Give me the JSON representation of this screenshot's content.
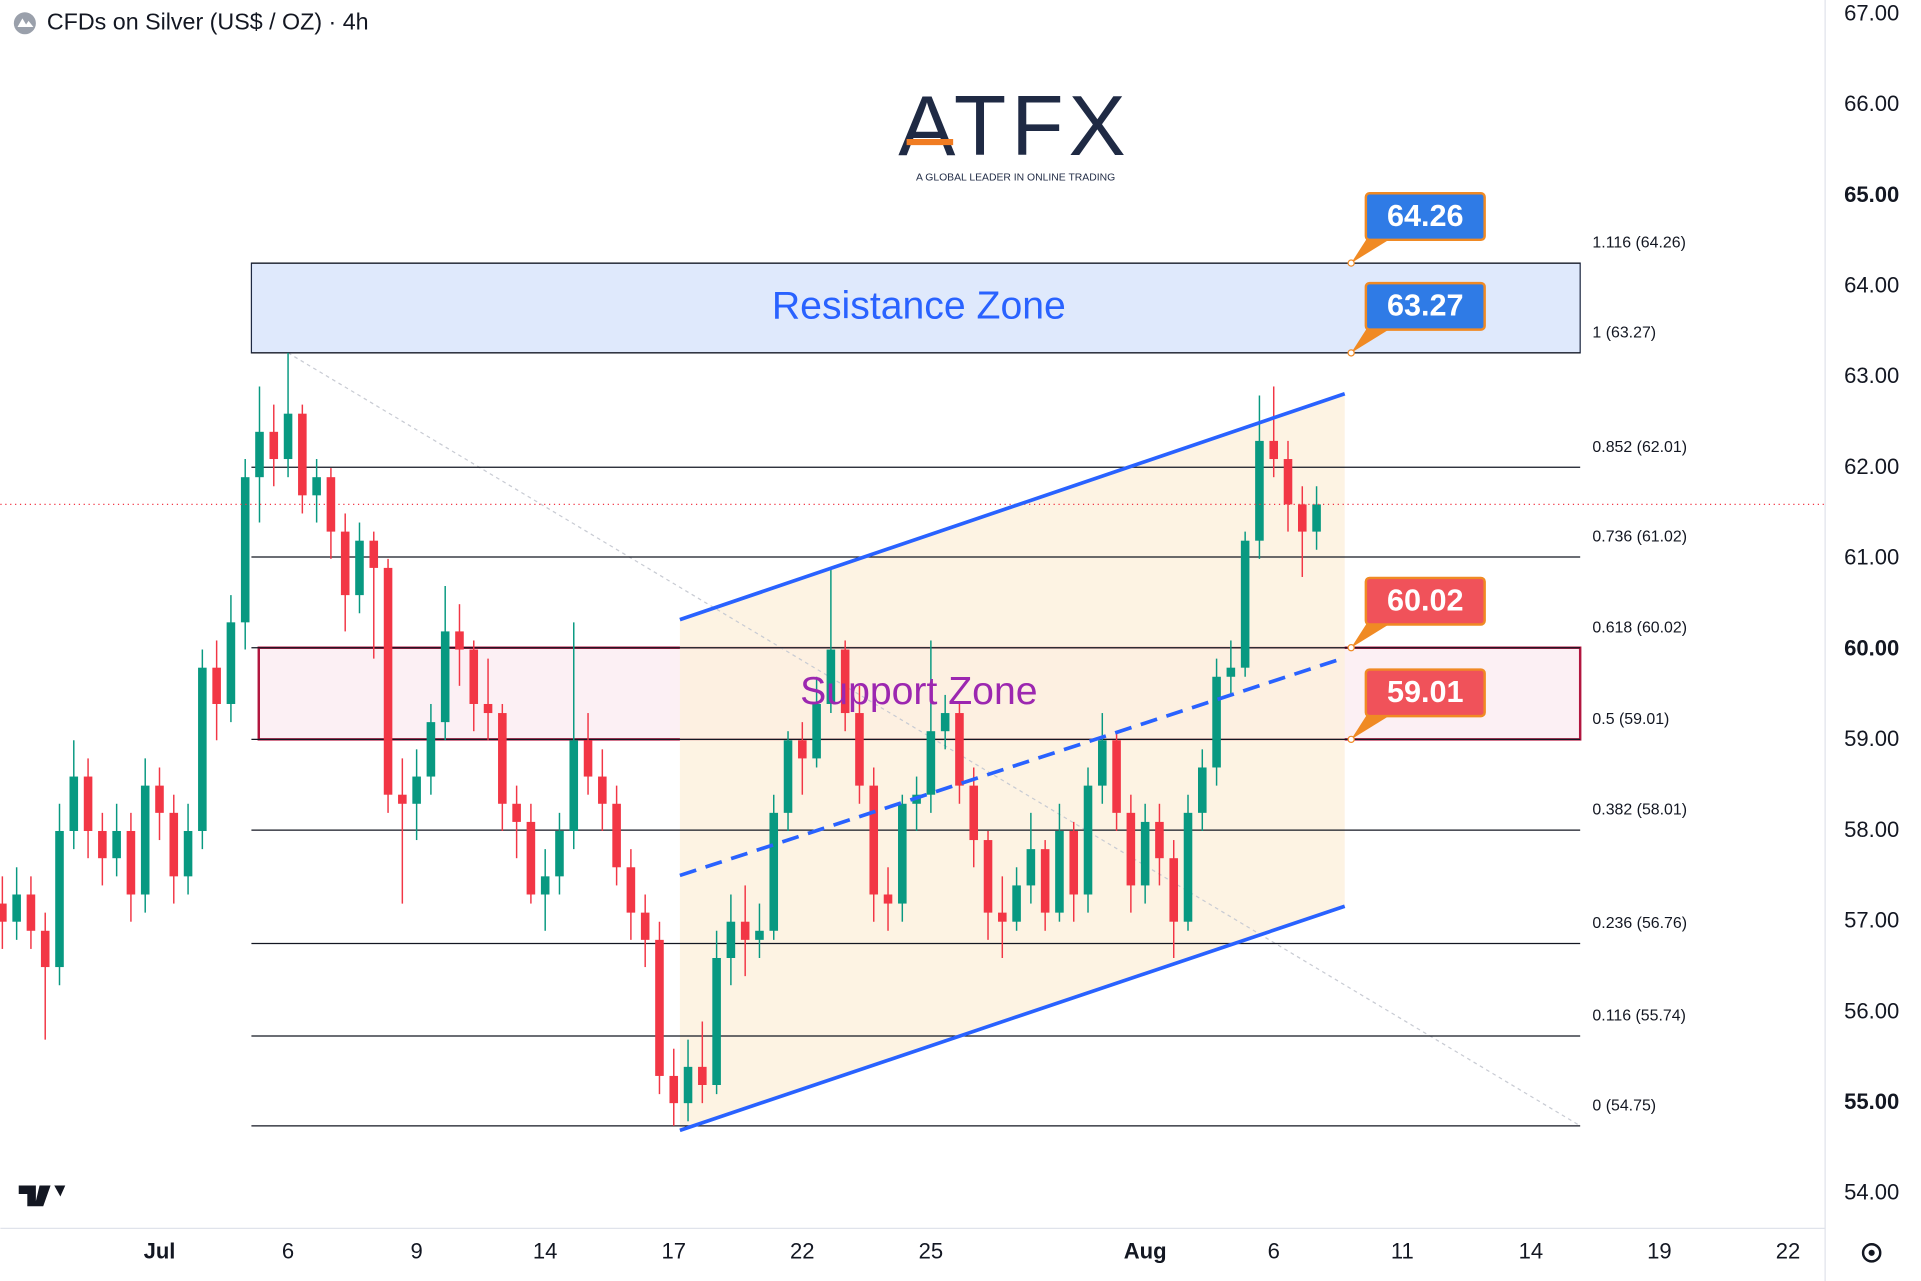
{
  "chart_data": {
    "type": "candlestick",
    "title": "CFDs on Silver (US$ / OZ) · 4h",
    "logo": "ATFX",
    "logo_tagline": "A GLOBAL LEADER IN ONLINE TRADING",
    "up_color": "#089981",
    "down_color": "#f23645",
    "x": [
      -11,
      -10,
      -9,
      -8,
      -7,
      -6,
      -5,
      -4,
      -3,
      -2,
      -1,
      0,
      1,
      2,
      3,
      4,
      5,
      6,
      7,
      8,
      9,
      10,
      11,
      12,
      13,
      14,
      15,
      16,
      17,
      18,
      19,
      20,
      21,
      22,
      23,
      24,
      25,
      26,
      27,
      28,
      29,
      30,
      31,
      32,
      33,
      34,
      35,
      36,
      37,
      38,
      39,
      40,
      41,
      42,
      43,
      44,
      45,
      46,
      47,
      48,
      49,
      50,
      51,
      52,
      53,
      54,
      55,
      56,
      57,
      58,
      59,
      60,
      61,
      62,
      63,
      64,
      65,
      66,
      67,
      68,
      69,
      70,
      71,
      72,
      73,
      74,
      75,
      76,
      77,
      78,
      79,
      80,
      81
    ],
    "open": [
      57.2,
      57.0,
      57.3,
      56.9,
      56.5,
      58.0,
      58.6,
      58.0,
      57.7,
      58.0,
      57.3,
      58.5,
      58.2,
      57.5,
      58.0,
      59.8,
      59.4,
      60.3,
      61.9,
      62.4,
      62.1,
      62.6,
      61.7,
      61.9,
      61.3,
      60.6,
      61.2,
      60.9,
      58.4,
      58.3,
      58.6,
      59.2,
      60.2,
      60.0,
      59.4,
      59.3,
      58.3,
      58.1,
      57.3,
      57.5,
      58.0,
      59.0,
      58.6,
      58.3,
      57.6,
      57.1,
      56.8,
      55.3,
      55.0,
      55.4,
      55.2,
      56.6,
      57.0,
      56.8,
      56.9,
      58.2,
      59.0,
      58.8,
      59.4,
      60.0,
      59.3,
      58.5,
      57.3,
      57.2,
      58.3,
      58.4,
      59.1,
      59.3,
      58.5,
      57.9,
      57.1,
      57.0,
      57.4,
      57.8,
      57.1,
      58.0,
      57.3,
      58.5,
      59.0,
      58.2,
      57.4,
      58.1,
      57.7,
      57.0,
      58.2,
      58.7,
      59.7,
      59.8,
      61.2,
      62.3,
      62.1,
      61.6,
      61.3
    ],
    "high": [
      57.5,
      57.6,
      57.5,
      57.1,
      58.3,
      59.0,
      58.8,
      58.2,
      58.3,
      58.2,
      58.8,
      58.7,
      58.4,
      58.3,
      60.0,
      60.1,
      60.6,
      62.1,
      62.9,
      62.7,
      63.27,
      62.7,
      62.1,
      62.0,
      61.5,
      61.4,
      61.3,
      61.0,
      58.8,
      58.9,
      59.4,
      60.7,
      60.5,
      60.1,
      59.9,
      59.4,
      58.5,
      58.3,
      57.8,
      58.2,
      60.3,
      59.3,
      58.9,
      58.5,
      57.8,
      57.3,
      57.0,
      55.6,
      55.7,
      55.9,
      56.9,
      57.3,
      57.4,
      57.2,
      58.4,
      59.1,
      59.2,
      59.7,
      60.9,
      60.1,
      59.6,
      58.7,
      57.6,
      58.4,
      58.6,
      60.1,
      59.5,
      59.4,
      58.7,
      58.0,
      57.5,
      57.6,
      58.2,
      57.9,
      58.3,
      58.1,
      58.7,
      59.3,
      59.1,
      58.4,
      58.3,
      58.3,
      57.9,
      58.4,
      58.9,
      59.9,
      60.1,
      61.3,
      62.8,
      62.9,
      62.3,
      61.8,
      61.8
    ],
    "low": [
      56.7,
      56.8,
      56.7,
      55.7,
      56.3,
      57.8,
      57.7,
      57.4,
      57.5,
      57.0,
      57.1,
      57.9,
      57.2,
      57.3,
      57.8,
      59.0,
      59.2,
      60.0,
      61.4,
      61.8,
      61.9,
      61.5,
      61.4,
      61.0,
      60.2,
      60.4,
      59.9,
      58.2,
      57.2,
      57.9,
      58.4,
      59.0,
      59.6,
      59.1,
      59.0,
      58.0,
      57.7,
      57.2,
      56.9,
      57.3,
      57.8,
      58.4,
      58.0,
      57.4,
      56.8,
      56.5,
      55.1,
      54.75,
      54.8,
      55.0,
      55.1,
      56.3,
      56.4,
      56.6,
      56.8,
      58.0,
      58.4,
      58.7,
      59.3,
      59.1,
      58.3,
      57.0,
      56.9,
      57.0,
      58.0,
      58.2,
      58.9,
      58.3,
      57.6,
      56.8,
      56.6,
      56.9,
      57.2,
      56.9,
      57.0,
      57.0,
      57.1,
      58.3,
      58.0,
      57.1,
      57.2,
      57.4,
      56.6,
      56.9,
      58.0,
      58.5,
      59.5,
      59.7,
      61.0,
      61.9,
      61.3,
      60.8,
      61.1
    ],
    "close": [
      57.0,
      57.3,
      56.9,
      56.5,
      58.0,
      58.6,
      58.0,
      57.7,
      58.0,
      57.3,
      58.5,
      58.2,
      57.5,
      58.0,
      59.8,
      59.4,
      60.3,
      61.9,
      62.4,
      62.1,
      62.6,
      61.7,
      61.9,
      61.3,
      60.6,
      61.2,
      60.9,
      58.4,
      58.3,
      58.6,
      59.2,
      60.2,
      60.0,
      59.4,
      59.3,
      58.3,
      58.1,
      57.3,
      57.5,
      58.0,
      59.0,
      58.6,
      58.3,
      57.6,
      57.1,
      56.8,
      55.3,
      55.0,
      55.4,
      55.2,
      56.6,
      57.0,
      56.8,
      56.9,
      58.2,
      59.0,
      58.8,
      59.4,
      60.0,
      59.3,
      58.5,
      57.3,
      57.2,
      58.3,
      58.4,
      59.1,
      59.3,
      58.5,
      57.9,
      57.1,
      57.0,
      57.4,
      57.8,
      57.1,
      58.0,
      57.3,
      58.5,
      59.0,
      58.2,
      57.4,
      58.1,
      57.7,
      57.0,
      58.2,
      58.7,
      59.7,
      59.8,
      61.2,
      62.3,
      62.1,
      61.6,
      61.3,
      61.6
    ],
    "xlim": [
      -11.14,
      116.6
    ],
    "xticks": [
      {
        "value": 0,
        "label": "Jul"
      },
      {
        "value": 9,
        "label": "6"
      },
      {
        "value": 18,
        "label": "9"
      },
      {
        "value": 27,
        "label": "14"
      },
      {
        "value": 36,
        "label": "17"
      },
      {
        "value": 45,
        "label": "22"
      },
      {
        "value": 54,
        "label": "25"
      },
      {
        "value": 69,
        "label": "Aug"
      },
      {
        "value": 78,
        "label": "6"
      },
      {
        "value": 87,
        "label": "11"
      },
      {
        "value": 96,
        "label": "14"
      },
      {
        "value": 105,
        "label": "19"
      },
      {
        "value": 114,
        "label": "22"
      }
    ],
    "ylim": [
      53.62,
      67.16
    ],
    "yticks": [
      {
        "value": 54,
        "label": "54.00"
      },
      {
        "value": 55,
        "label": "55.00"
      },
      {
        "value": 56,
        "label": "56.00"
      },
      {
        "value": 57,
        "label": "57.00"
      },
      {
        "value": 58,
        "label": "58.00"
      },
      {
        "value": 59,
        "label": "59.00"
      },
      {
        "value": 60,
        "label": "60.00"
      },
      {
        "value": 61,
        "label": "61.00"
      },
      {
        "value": 62,
        "label": "62.00"
      },
      {
        "value": 63,
        "label": "63.00"
      },
      {
        "value": 64,
        "label": "64.00"
      },
      {
        "value": 65,
        "label": "65.00"
      },
      {
        "value": 66,
        "label": "66.00"
      },
      {
        "value": 67,
        "label": "67.00"
      }
    ],
    "fib_levels": [
      {
        "value": 64.26,
        "label": "1.116 (64.26)"
      },
      {
        "value": 63.27,
        "label": "1 (63.27)"
      },
      {
        "value": 62.01,
        "label": "0.852 (62.01)"
      },
      {
        "value": 61.02,
        "label": "0.736 (61.02)"
      },
      {
        "value": 60.02,
        "label": "0.618 (60.02)"
      },
      {
        "value": 59.01,
        "label": "0.5 (59.01)"
      },
      {
        "value": 58.01,
        "label": "0.382 (58.01)"
      },
      {
        "value": 56.76,
        "label": "0.236 (56.76)"
      },
      {
        "value": 55.74,
        "label": "0.116 (55.74)"
      },
      {
        "value": 54.75,
        "label": "0 (54.75)"
      }
    ],
    "zones": [
      {
        "label": "Resistance Zone",
        "low": 63.27,
        "high": 64.26,
        "fill": "#dfe9fc",
        "stroke": "#1f2a44",
        "text_color": "#2962ff"
      },
      {
        "label": "Support Zone",
        "low": 59.01,
        "high": 60.02,
        "fill": "#fcf0f4",
        "stroke": "#b2163f",
        "text_color": "#9c27b0"
      }
    ],
    "price_tags": [
      {
        "value": 64.26,
        "color": "#2f7be6"
      },
      {
        "value": 63.27,
        "color": "#2f7be6"
      },
      {
        "value": 60.02,
        "color": "#f0525a"
      },
      {
        "value": 59.01,
        "color": "#f0525a"
      }
    ],
    "channel": {
      "color": "#2962ff",
      "upper": {
        "x": [
          36.43,
          82.97
        ],
        "y": [
          60.33,
          62.82
        ]
      },
      "middle": {
        "x": [
          36.43,
          82.97
        ],
        "y": [
          57.51,
          59.91
        ]
      },
      "lower": {
        "x": [
          36.43,
          82.97
        ],
        "y": [
          54.7,
          57.17
        ]
      }
    }
  }
}
